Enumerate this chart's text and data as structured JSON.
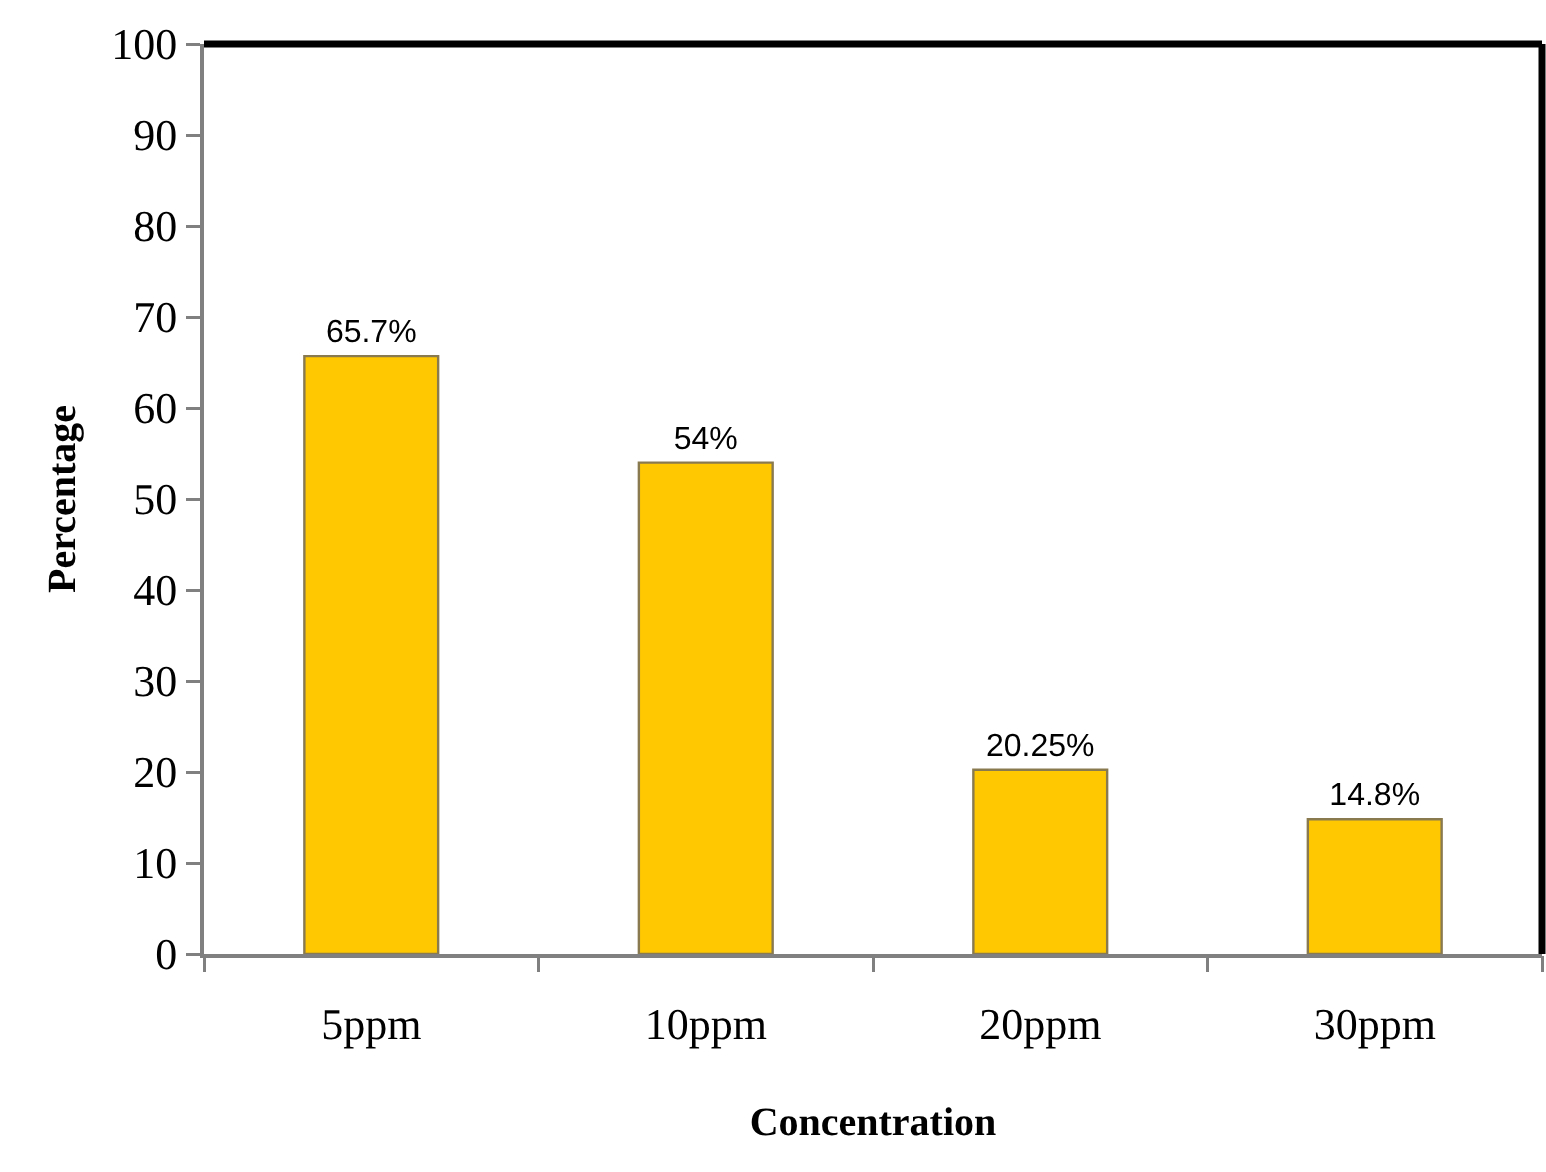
{
  "chart_data": {
    "type": "bar",
    "xlabel": "Concentration",
    "ylabel": "Percentage",
    "categories": [
      "5ppm",
      "10ppm",
      "20ppm",
      "30ppm"
    ],
    "values": [
      65.7,
      54,
      20.25,
      14.8
    ],
    "value_labels": [
      "65.7%",
      "54%",
      "20.25%",
      "14.8%"
    ],
    "color": "#ffc800",
    "ylim": [
      0,
      100
    ],
    "yticks": [
      0,
      10,
      20,
      30,
      40,
      50,
      60,
      70,
      80,
      90,
      100
    ]
  }
}
